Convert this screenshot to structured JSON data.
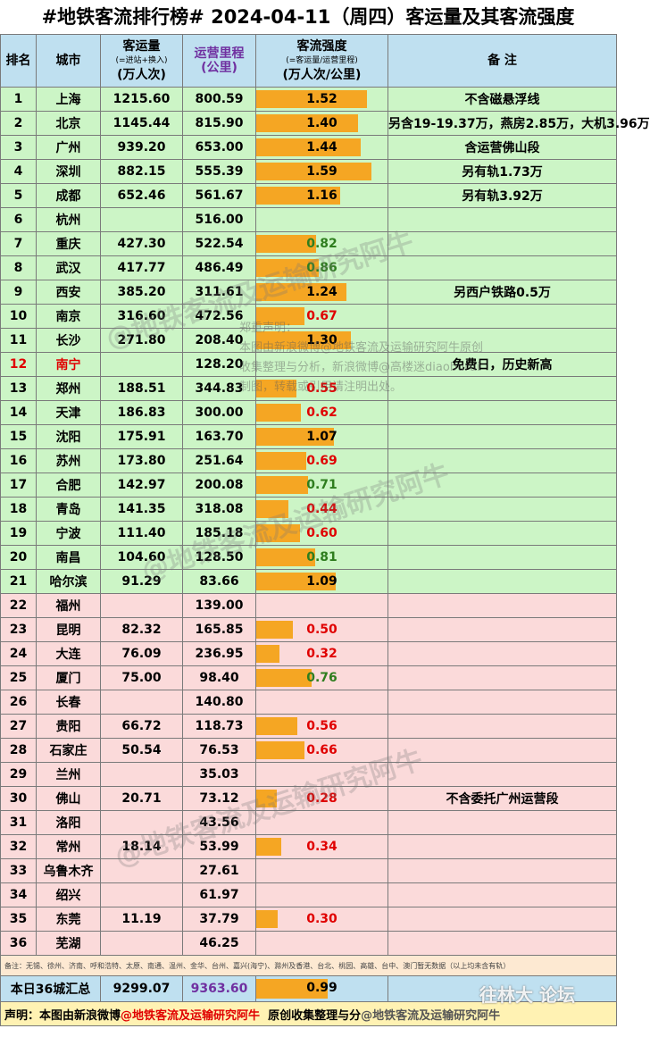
{
  "title": "#地铁客流排行榜# 2024-04-11（周四）客运量及其客流强度",
  "headers": {
    "rank": "排名",
    "city": "城市",
    "ridership": "客运量",
    "ridership_sub": "(=进站+换入)",
    "ridership_unit": "(万人次)",
    "km": "运营里程",
    "km_unit": "(公里)",
    "intensity": "客流强度",
    "intensity_sub": "(=客运量/运营里程)",
    "intensity_unit": "(万人次/公里)",
    "note": "备  注"
  },
  "rows": [
    {
      "rank": "1",
      "city": "上海",
      "ridership": "1215.60",
      "km": "800.59",
      "intensity": "1.52",
      "level": 1.52,
      "note": "不含磁悬浮线",
      "bg": "green",
      "color": "black"
    },
    {
      "rank": "2",
      "city": "北京",
      "ridership": "1145.44",
      "km": "815.90",
      "intensity": "1.40",
      "level": 1.4,
      "note": "另含19-19.37万，燕房2.85万，大机3.96万",
      "bg": "green",
      "color": "black"
    },
    {
      "rank": "3",
      "city": "广州",
      "ridership": "939.20",
      "km": "653.00",
      "intensity": "1.44",
      "level": 1.44,
      "note": "含运营佛山段",
      "bg": "green",
      "color": "black"
    },
    {
      "rank": "4",
      "city": "深圳",
      "ridership": "882.15",
      "km": "555.39",
      "intensity": "1.59",
      "level": 1.59,
      "note": "另有轨1.73万",
      "bg": "green",
      "color": "black"
    },
    {
      "rank": "5",
      "city": "成都",
      "ridership": "652.46",
      "km": "561.67",
      "intensity": "1.16",
      "level": 1.16,
      "note": "另有轨3.92万",
      "bg": "green",
      "color": "black"
    },
    {
      "rank": "6",
      "city": "杭州",
      "ridership": "",
      "km": "516.00",
      "intensity": "",
      "level": 0,
      "note": "",
      "bg": "green",
      "color": "black"
    },
    {
      "rank": "7",
      "city": "重庆",
      "ridership": "427.30",
      "km": "522.54",
      "intensity": "0.82",
      "level": 0.82,
      "note": "",
      "bg": "green",
      "color": "green"
    },
    {
      "rank": "8",
      "city": "武汉",
      "ridership": "417.77",
      "km": "486.49",
      "intensity": "0.86",
      "level": 0.86,
      "note": "",
      "bg": "green",
      "color": "green"
    },
    {
      "rank": "9",
      "city": "西安",
      "ridership": "385.20",
      "km": "311.61",
      "intensity": "1.24",
      "level": 1.24,
      "note": "另西户铁路0.5万",
      "bg": "green",
      "color": "black"
    },
    {
      "rank": "10",
      "city": "南京",
      "ridership": "316.60",
      "km": "472.56",
      "intensity": "0.67",
      "level": 0.67,
      "note": "",
      "bg": "green",
      "color": "red"
    },
    {
      "rank": "11",
      "city": "长沙",
      "ridership": "271.80",
      "km": "208.40",
      "intensity": "1.30",
      "level": 1.3,
      "note": "",
      "bg": "green",
      "color": "black"
    },
    {
      "rank": "12",
      "city": "南宁",
      "ridership": "",
      "km": "128.20",
      "intensity": "",
      "level": 0,
      "note": "免费日，历史新高",
      "bg": "green",
      "color": "black",
      "highlight": true
    },
    {
      "rank": "13",
      "city": "郑州",
      "ridership": "188.51",
      "km": "344.83",
      "intensity": "0.55",
      "level": 0.55,
      "note": "",
      "bg": "green",
      "color": "red"
    },
    {
      "rank": "14",
      "city": "天津",
      "ridership": "186.83",
      "km": "300.00",
      "intensity": "0.62",
      "level": 0.62,
      "note": "",
      "bg": "green",
      "color": "red"
    },
    {
      "rank": "15",
      "city": "沈阳",
      "ridership": "175.91",
      "km": "163.70",
      "intensity": "1.07",
      "level": 1.07,
      "note": "",
      "bg": "green",
      "color": "black"
    },
    {
      "rank": "16",
      "city": "苏州",
      "ridership": "173.80",
      "km": "251.64",
      "intensity": "0.69",
      "level": 0.69,
      "note": "",
      "bg": "green",
      "color": "red"
    },
    {
      "rank": "17",
      "city": "合肥",
      "ridership": "142.97",
      "km": "200.08",
      "intensity": "0.71",
      "level": 0.71,
      "note": "",
      "bg": "green",
      "color": "green"
    },
    {
      "rank": "18",
      "city": "青岛",
      "ridership": "141.35",
      "km": "318.08",
      "intensity": "0.44",
      "level": 0.44,
      "note": "",
      "bg": "green",
      "color": "red"
    },
    {
      "rank": "19",
      "city": "宁波",
      "ridership": "111.40",
      "km": "185.18",
      "intensity": "0.60",
      "level": 0.6,
      "note": "",
      "bg": "green",
      "color": "red"
    },
    {
      "rank": "20",
      "city": "南昌",
      "ridership": "104.60",
      "km": "128.50",
      "intensity": "0.81",
      "level": 0.81,
      "note": "",
      "bg": "green",
      "color": "green"
    },
    {
      "rank": "21",
      "city": "哈尔滨",
      "ridership": "91.29",
      "km": "83.66",
      "intensity": "1.09",
      "level": 1.09,
      "note": "",
      "bg": "green",
      "color": "black"
    },
    {
      "rank": "22",
      "city": "福州",
      "ridership": "",
      "km": "139.00",
      "intensity": "",
      "level": 0,
      "note": "",
      "bg": "pink",
      "color": "black"
    },
    {
      "rank": "23",
      "city": "昆明",
      "ridership": "82.32",
      "km": "165.85",
      "intensity": "0.50",
      "level": 0.5,
      "note": "",
      "bg": "pink",
      "color": "red"
    },
    {
      "rank": "24",
      "city": "大连",
      "ridership": "76.09",
      "km": "236.95",
      "intensity": "0.32",
      "level": 0.32,
      "note": "",
      "bg": "pink",
      "color": "red"
    },
    {
      "rank": "25",
      "city": "厦门",
      "ridership": "75.00",
      "km": "98.40",
      "intensity": "0.76",
      "level": 0.76,
      "note": "",
      "bg": "pink",
      "color": "green"
    },
    {
      "rank": "26",
      "city": "长春",
      "ridership": "",
      "km": "140.80",
      "intensity": "",
      "level": 0,
      "note": "",
      "bg": "pink",
      "color": "black"
    },
    {
      "rank": "27",
      "city": "贵阳",
      "ridership": "66.72",
      "km": "118.73",
      "intensity": "0.56",
      "level": 0.56,
      "note": "",
      "bg": "pink",
      "color": "red"
    },
    {
      "rank": "28",
      "city": "石家庄",
      "ridership": "50.54",
      "km": "76.53",
      "intensity": "0.66",
      "level": 0.66,
      "note": "",
      "bg": "pink",
      "color": "red"
    },
    {
      "rank": "29",
      "city": "兰州",
      "ridership": "",
      "km": "35.03",
      "intensity": "",
      "level": 0,
      "note": "",
      "bg": "pink",
      "color": "black"
    },
    {
      "rank": "30",
      "city": "佛山",
      "ridership": "20.71",
      "km": "73.12",
      "intensity": "0.28",
      "level": 0.28,
      "note": "不含委托广州运营段",
      "bg": "pink",
      "color": "red"
    },
    {
      "rank": "31",
      "city": "洛阳",
      "ridership": "",
      "km": "43.56",
      "intensity": "",
      "level": 0,
      "note": "",
      "bg": "pink",
      "color": "black"
    },
    {
      "rank": "32",
      "city": "常州",
      "ridership": "18.14",
      "km": "53.99",
      "intensity": "0.34",
      "level": 0.34,
      "note": "",
      "bg": "pink",
      "color": "red"
    },
    {
      "rank": "33",
      "city": "乌鲁木齐",
      "ridership": "",
      "km": "27.61",
      "intensity": "",
      "level": 0,
      "note": "",
      "bg": "pink",
      "color": "black"
    },
    {
      "rank": "34",
      "city": "绍兴",
      "ridership": "",
      "km": "61.97",
      "intensity": "",
      "level": 0,
      "note": "",
      "bg": "pink",
      "color": "black"
    },
    {
      "rank": "35",
      "city": "东莞",
      "ridership": "11.19",
      "km": "37.79",
      "intensity": "0.30",
      "level": 0.3,
      "note": "",
      "bg": "pink",
      "color": "red"
    },
    {
      "rank": "36",
      "city": "芜湖",
      "ridership": "",
      "km": "46.25",
      "intensity": "",
      "level": 0,
      "note": "",
      "bg": "pink",
      "color": "black"
    }
  ],
  "footnote": "备注：无锡、徐州、济南、呼和浩特、太原、南通、温州、金华、台州、嘉兴(海宁)、滁州及香港、台北、桃园、高雄、台中、澳门暂无数据（以上均未含有轨）",
  "total": {
    "label": "本日36城汇总",
    "ridership": "9299.07",
    "km": "9363.60",
    "intensity": "0.99",
    "level": 0.99
  },
  "statement": {
    "prefix": "声明：本图由新浪微博",
    "highlight": "@地铁客流及运输研究阿牛",
    "suffix": "原创收集整理与分",
    "tail": "@地铁客流及运输研究阿牛"
  },
  "disclaimer": {
    "line1": "郑重声明：",
    "line2": "本图由新浪微博@地铁客流及运输研究阿牛原创",
    "line3": "收集整理与分析，新浪微博@高楼迷diaoburui",
    "line4": "制图，转载或引用请注明出处。"
  },
  "watermark": "@地铁客流及运输研究阿牛",
  "corner_logo": "往林大 论坛",
  "colors": {
    "bar": "#f5a623",
    "green_row": "#ccf5c6",
    "pink_row": "#fbdada",
    "header": "#bfe0f0",
    "km_text": "#7030a0"
  },
  "scale_max": 1.6
}
